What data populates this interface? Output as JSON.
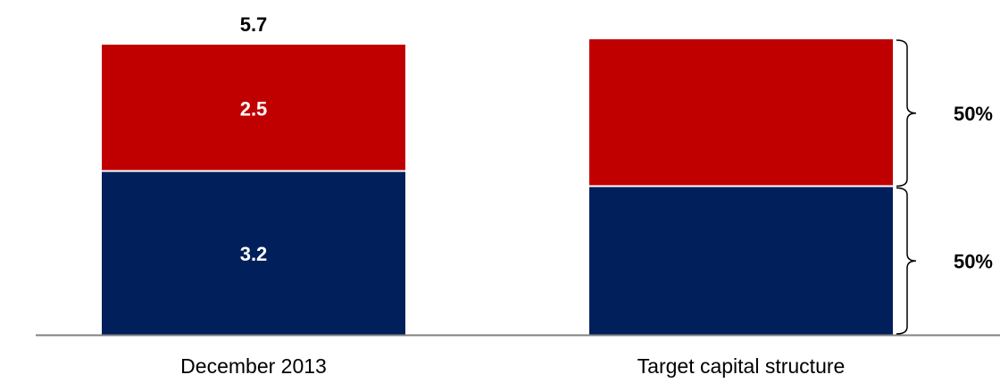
{
  "chart_data": {
    "type": "bar",
    "stacked": true,
    "categories": [
      "December 2013",
      "Target capital structure"
    ],
    "series": [
      {
        "color": "#001f5b",
        "values": [
          3.2,
          50
        ]
      },
      {
        "color": "#c00000",
        "values": [
          2.5,
          50
        ]
      }
    ],
    "data_labels": {
      "December 2013": {
        "segments": [
          "3.2",
          "2.5"
        ],
        "total": "5.7"
      },
      "Target capital structure": {
        "segments": [
          "50%",
          "50%"
        ]
      }
    },
    "axis_color": "#808080",
    "grid": false,
    "legend": "none"
  }
}
